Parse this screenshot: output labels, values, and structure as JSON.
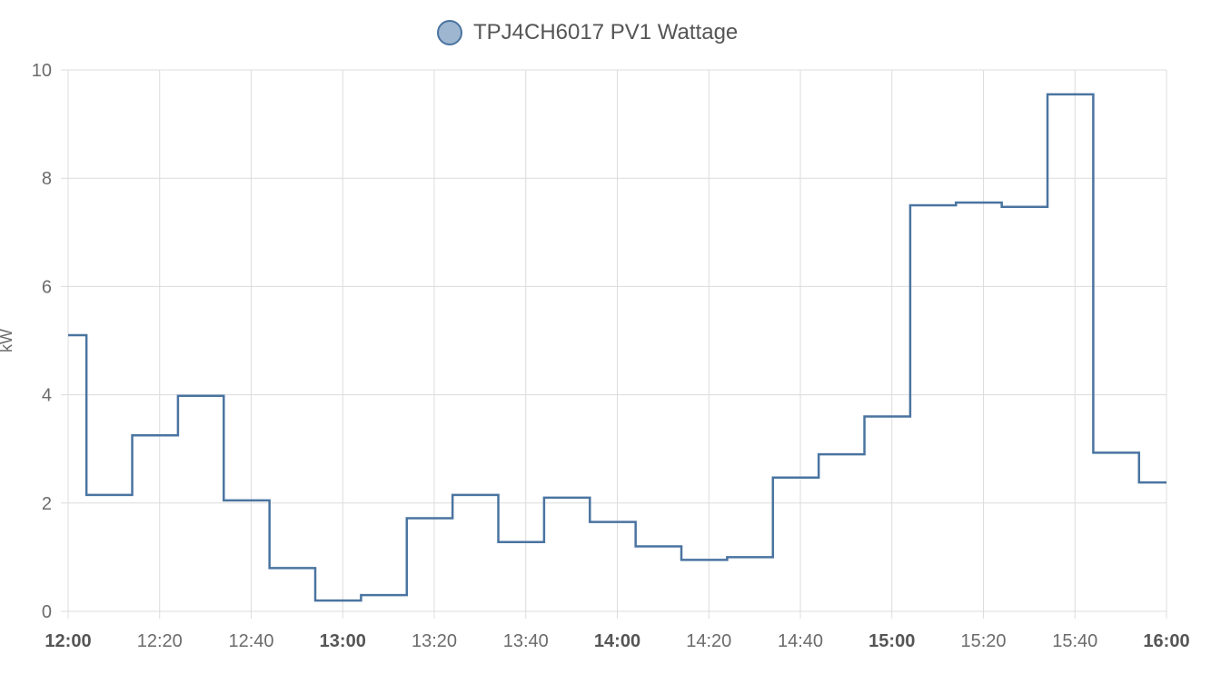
{
  "chart_data": {
    "type": "line",
    "step": true,
    "legend_position": "top-center",
    "grid": true,
    "ylabel": "kW",
    "ylim": [
      0,
      10
    ],
    "yticks": [
      0,
      2,
      4,
      6,
      8,
      10
    ],
    "xlim": [
      "12:00",
      "16:00"
    ],
    "xticks": [
      "12:00",
      "12:20",
      "12:40",
      "13:00",
      "13:20",
      "13:40",
      "14:00",
      "14:20",
      "14:40",
      "15:00",
      "15:20",
      "15:40",
      "16:00"
    ],
    "xticks_bold": [
      "12:00",
      "13:00",
      "14:00",
      "15:00",
      "16:00"
    ],
    "series": [
      {
        "name": "TPJ4CH6017 PV1 Wattage",
        "color": "#4a74a0",
        "fill": "#9fb6d0",
        "x": [
          "12:00",
          "12:04",
          "12:14",
          "12:24",
          "12:34",
          "12:44",
          "12:54",
          "13:04",
          "13:14",
          "13:24",
          "13:34",
          "13:44",
          "13:54",
          "14:04",
          "14:14",
          "14:24",
          "14:34",
          "14:44",
          "14:54",
          "15:04",
          "15:14",
          "15:24",
          "15:34",
          "15:44",
          "15:54",
          "16:00"
        ],
        "y": [
          5.1,
          2.15,
          3.25,
          3.98,
          2.05,
          0.8,
          0.2,
          0.3,
          1.72,
          2.15,
          1.28,
          2.1,
          1.65,
          1.2,
          0.95,
          1.0,
          2.47,
          2.9,
          3.6,
          7.5,
          7.55,
          7.47,
          9.55,
          2.93,
          2.38,
          2.38
        ]
      }
    ]
  }
}
